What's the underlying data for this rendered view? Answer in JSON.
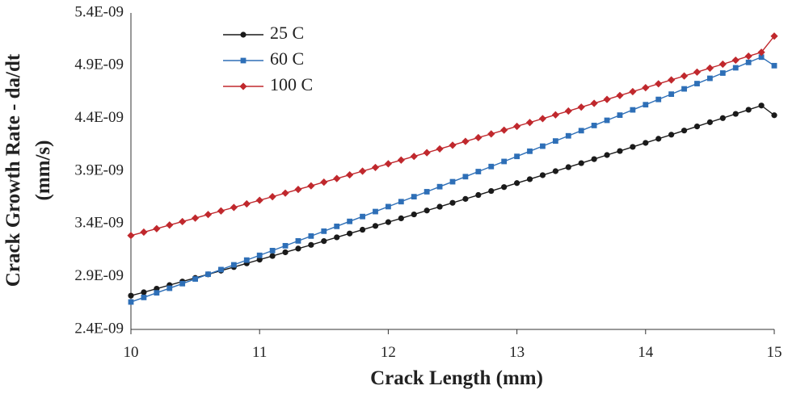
{
  "chart_data": {
    "type": "line",
    "title": "",
    "xlabel": "Crack Length (mm)",
    "ylabel_line1": "Crack Growth Rate - da/dt",
    "ylabel_line2": "(mm/s)",
    "xlim": [
      10,
      15
    ],
    "ylim": [
      2.4e-09,
      5.4e-09
    ],
    "x_ticks": [
      10,
      11,
      12,
      13,
      14,
      15
    ],
    "x_tick_labels": [
      "10",
      "11",
      "12",
      "13",
      "14",
      "15"
    ],
    "y_ticks": [
      2.4e-09,
      2.9e-09,
      3.4e-09,
      3.9e-09,
      4.4e-09,
      4.9e-09,
      5.4e-09
    ],
    "y_tick_labels": [
      "2.4E-09",
      "2.9E-09",
      "3.4E-09",
      "3.9E-09",
      "4.4E-09",
      "4.9E-09",
      "5.4E-09"
    ],
    "x_start": 10,
    "x_step": 0.1,
    "legend_position": "top-left",
    "series": [
      {
        "name": "25 C",
        "color": "#1a1a1a",
        "marker": "circle",
        "values": [
          2.72e-09,
          2.752e-09,
          2.786e-09,
          2.82e-09,
          2.854e-09,
          2.888e-09,
          2.922e-09,
          2.957e-09,
          2.991e-09,
          3.026e-09,
          3.061e-09,
          3.096e-09,
          3.131e-09,
          3.166e-09,
          3.201e-09,
          3.237e-09,
          3.273e-09,
          3.309e-09,
          3.345e-09,
          3.381e-09,
          3.417e-09,
          3.453e-09,
          3.49e-09,
          3.527e-09,
          3.563e-09,
          3.6e-09,
          3.637e-09,
          3.674e-09,
          3.712e-09,
          3.749e-09,
          3.787e-09,
          3.824e-09,
          3.862e-09,
          3.9e-09,
          3.938e-09,
          3.976e-09,
          4.014e-09,
          4.053e-09,
          4.091e-09,
          4.13e-09,
          4.168e-09,
          4.207e-09,
          4.246e-09,
          4.285e-09,
          4.324e-09,
          4.364e-09,
          4.403e-09,
          4.443e-09,
          4.482e-09,
          4.522e-09,
          4.43e-09
        ]
      },
      {
        "name": "60 C",
        "color": "#2e6fb7",
        "marker": "square",
        "values": [
          2.66e-09,
          2.703e-09,
          2.747e-09,
          2.79e-09,
          2.834e-09,
          2.878e-09,
          2.923e-09,
          2.967e-09,
          3.012e-09,
          3.057e-09,
          3.102e-09,
          3.147e-09,
          3.193e-09,
          3.239e-09,
          3.285e-09,
          3.331e-09,
          3.377e-09,
          3.424e-09,
          3.47e-09,
          3.517e-09,
          3.564e-09,
          3.611e-09,
          3.658e-09,
          3.705e-09,
          3.753e-09,
          3.8e-09,
          3.848e-09,
          3.896e-09,
          3.944e-09,
          3.992e-09,
          4.04e-09,
          4.089e-09,
          4.137e-09,
          4.186e-09,
          4.235e-09,
          4.284e-09,
          4.333e-09,
          4.382e-09,
          4.431e-09,
          4.481e-09,
          4.53e-09,
          4.58e-09,
          4.63e-09,
          4.68e-09,
          4.73e-09,
          4.78e-09,
          4.83e-09,
          4.88e-09,
          4.931e-09,
          4.981e-09,
          4.9e-09
        ]
      },
      {
        "name": "100 C",
        "color": "#c0282d",
        "marker": "diamond",
        "values": [
          3.29e-09,
          3.322e-09,
          3.355e-09,
          3.389e-09,
          3.422e-09,
          3.455e-09,
          3.489e-09,
          3.523e-09,
          3.556e-09,
          3.59e-09,
          3.624e-09,
          3.658e-09,
          3.692e-09,
          3.727e-09,
          3.761e-09,
          3.796e-09,
          3.83e-09,
          3.865e-09,
          3.9e-09,
          3.935e-09,
          3.97e-09,
          4.005e-09,
          4.04e-09,
          4.075e-09,
          4.111e-09,
          4.146e-09,
          4.182e-09,
          4.218e-09,
          4.253e-09,
          4.289e-09,
          4.325e-09,
          4.361e-09,
          4.398e-09,
          4.434e-09,
          4.47e-09,
          4.507e-09,
          4.543e-09,
          4.58e-09,
          4.617e-09,
          4.654e-09,
          4.691e-09,
          4.728e-09,
          4.765e-09,
          4.802e-09,
          4.839e-09,
          4.877e-09,
          4.914e-09,
          4.952e-09,
          4.99e-09,
          5.027e-09,
          5.18e-09
        ]
      }
    ]
  }
}
